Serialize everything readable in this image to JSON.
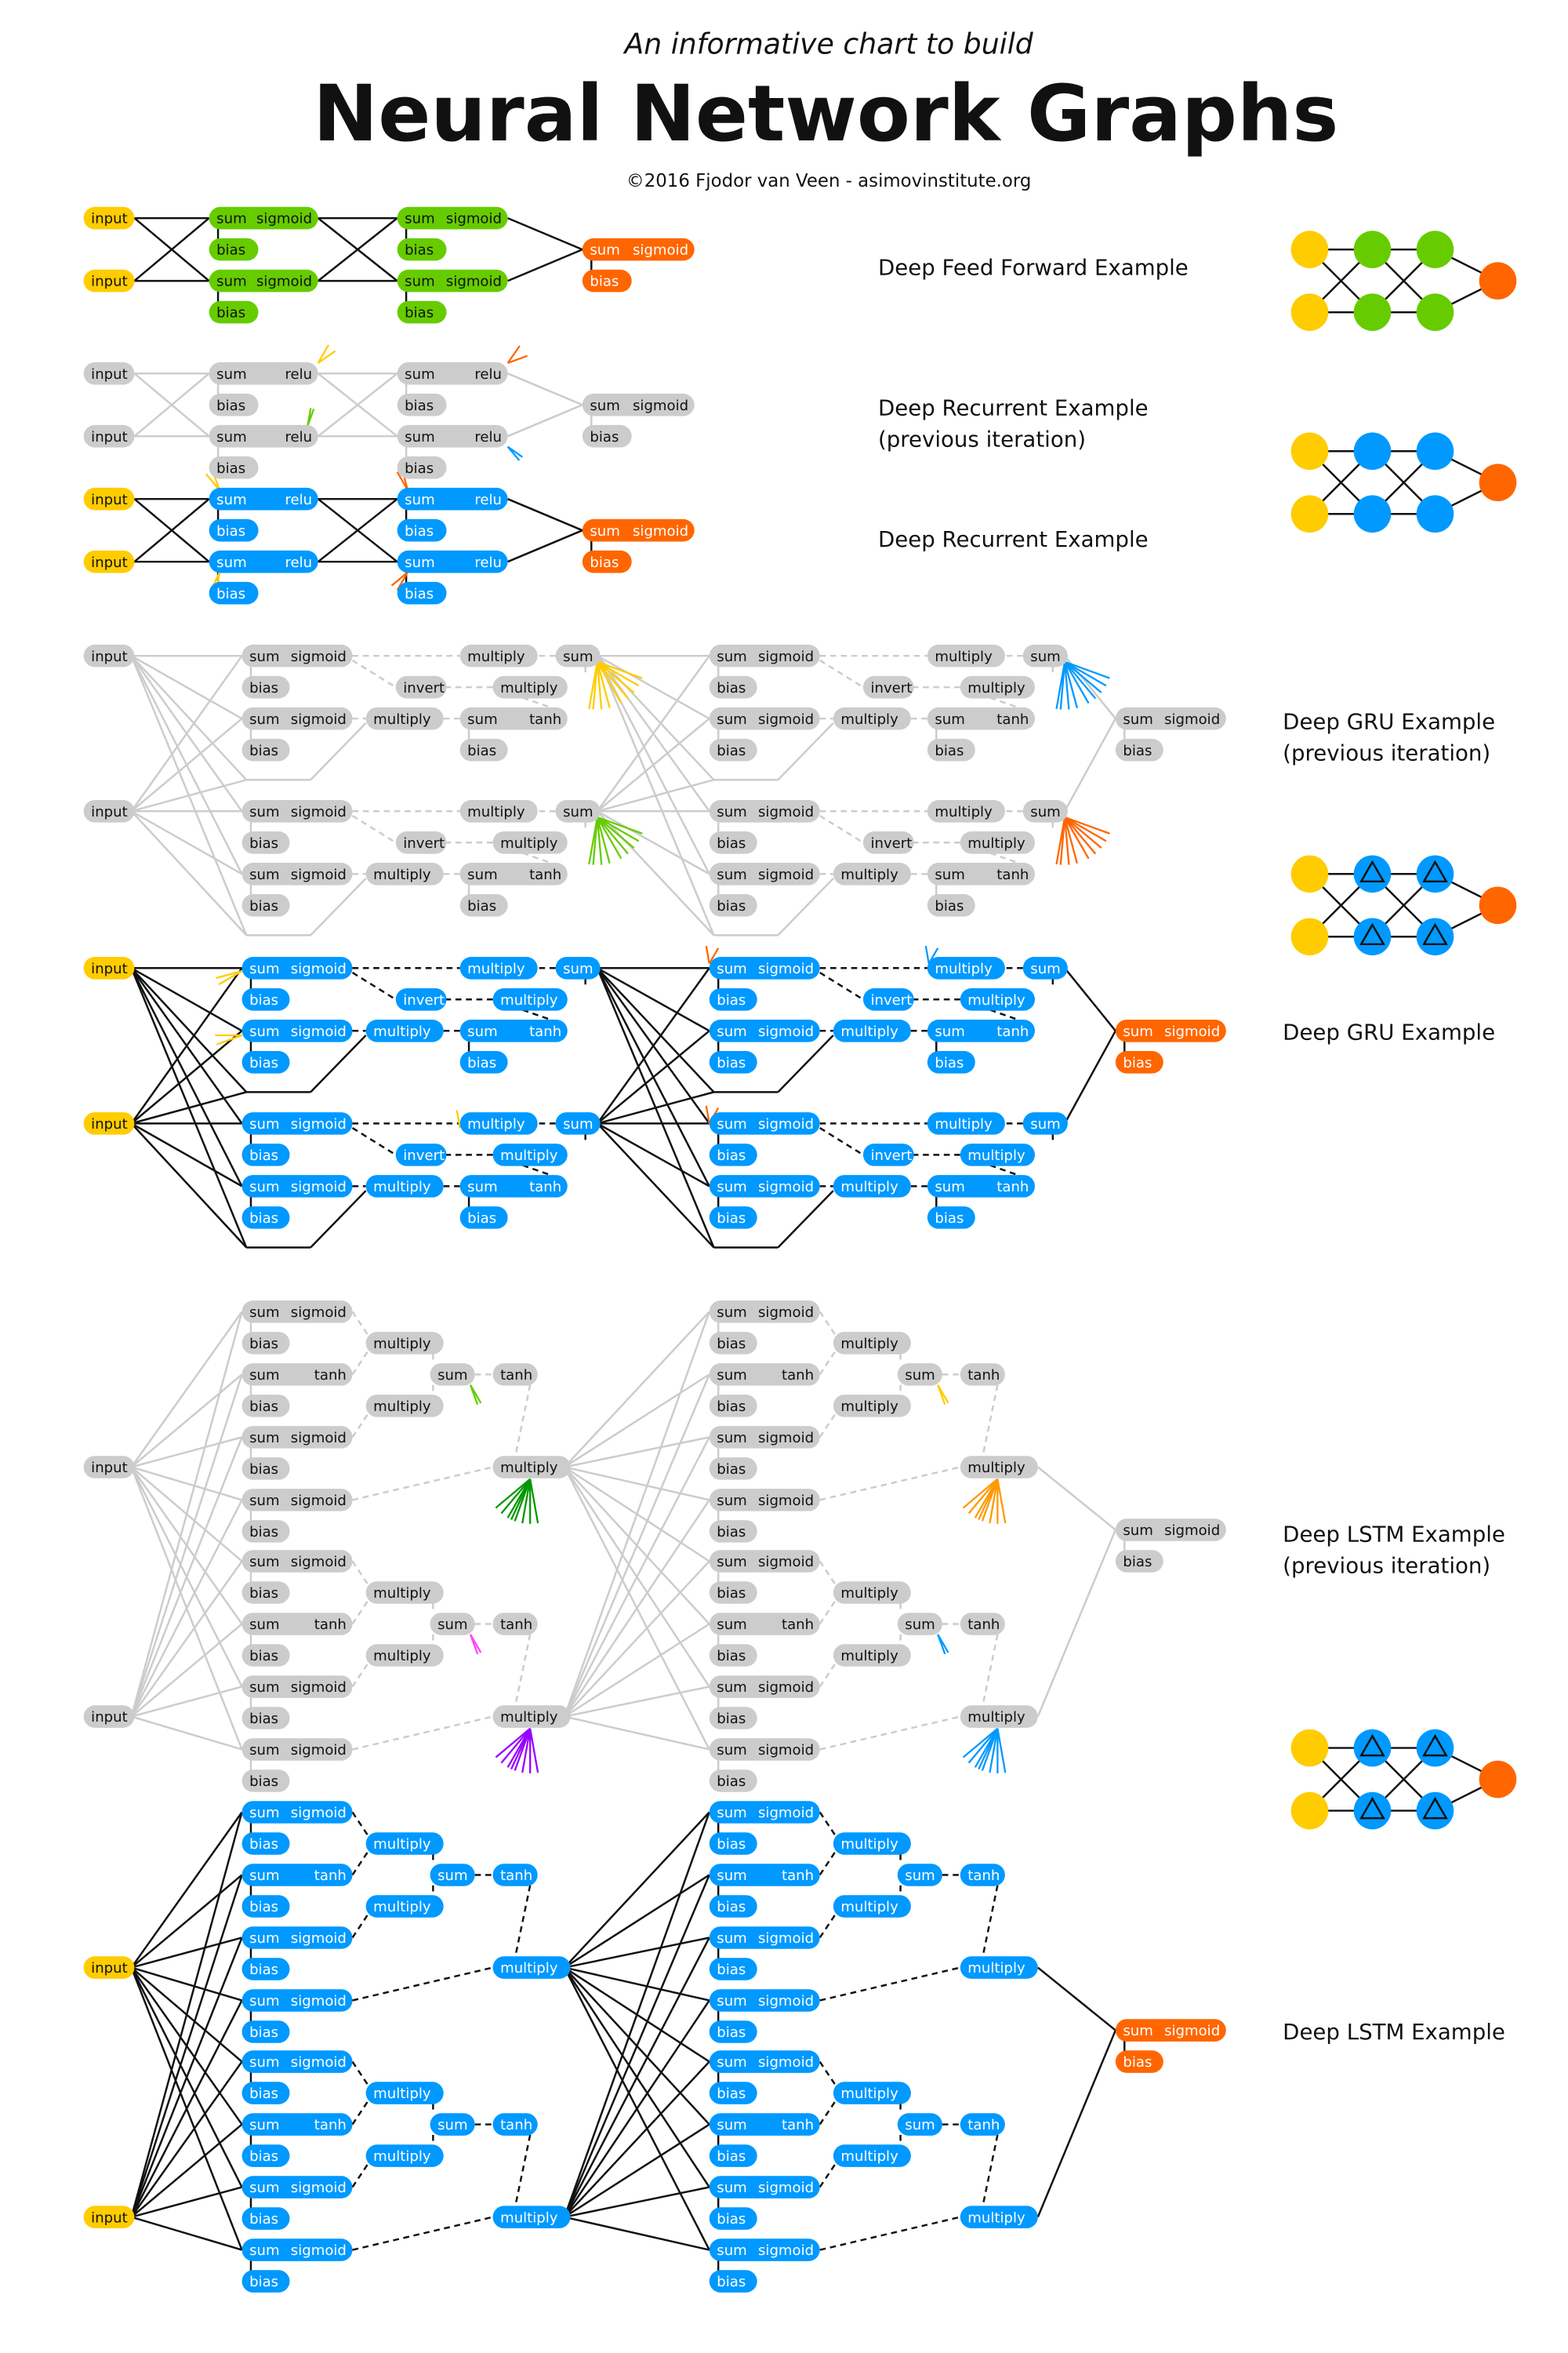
{
  "header": {
    "subtitle": "An informative chart to build",
    "title": "Neural Network Graphs",
    "credit": "©2016 Fjodor van Veen - asimovinstitute.org"
  },
  "examples": {
    "dff": "Deep Feed Forward Example",
    "rnn_prev_1": "Deep Recurrent Example",
    "rnn_prev_2": "(previous iteration)",
    "rnn": "Deep Recurrent Example",
    "gru_prev_1": "Deep GRU Example",
    "gru_prev_2": "(previous iteration)",
    "gru": "Deep GRU Example",
    "lstm_prev_1": "Deep LSTM Example",
    "lstm_prev_2": "(previous iteration)",
    "lstm": "Deep LSTM Example"
  },
  "node_labels": {
    "input": "input",
    "sum": "sum",
    "sigmoid": "sigmoid",
    "relu": "relu",
    "tanh": "tanh",
    "bias": "bias",
    "multiply": "multiply",
    "invert": "invert"
  },
  "colors": {
    "input": "#FFCC00",
    "feedforward_hidden": "#66CC00",
    "recurrent_hidden": "#0099FF",
    "output": "#FF6600",
    "previous_iteration": "#CCCCCC",
    "spray_green": "#009900",
    "spray_magenta": "#FF44FF",
    "spray_purple": "#9900FF"
  }
}
